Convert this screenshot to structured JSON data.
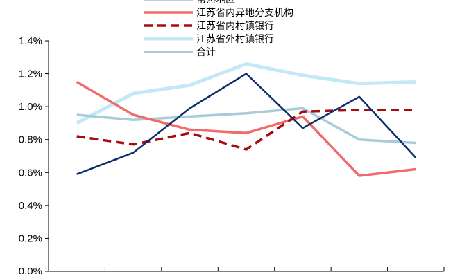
{
  "chart_data": {
    "type": "line",
    "title": "",
    "xlabel": "",
    "ylabel": "",
    "ylim": [
      0,
      1.4
    ],
    "yticks": [
      "0.0%",
      "0.2%",
      "0.4%",
      "0.6%",
      "0.8%",
      "1.0%",
      "1.2%",
      "1.4%"
    ],
    "y_unit": "%",
    "grid": false,
    "legend_position": "top-center",
    "x": [
      1,
      2,
      3,
      4,
      5,
      6,
      7
    ],
    "series": [
      {
        "name": "常熟地区",
        "color": "#0b2d6b",
        "style": "solid",
        "width": 2.5,
        "values": [
          0.59,
          0.72,
          0.99,
          1.2,
          0.87,
          1.06,
          0.69
        ]
      },
      {
        "name": "江苏省内异地分支机构",
        "color": "#f26b6b",
        "style": "solid",
        "width": 3.5,
        "values": [
          1.15,
          0.95,
          0.86,
          0.84,
          0.94,
          0.58,
          0.62
        ]
      },
      {
        "name": "江苏省内村镇银行",
        "color": "#a50d12",
        "style": "dashed",
        "width": 3.5,
        "values": [
          0.82,
          0.77,
          0.84,
          0.74,
          0.97,
          0.98,
          0.98
        ]
      },
      {
        "name": "江苏省外村镇银行",
        "color": "#c5e8f7",
        "style": "solid",
        "width": 5,
        "values": [
          0.9,
          1.08,
          1.13,
          1.26,
          1.19,
          1.14,
          1.15
        ]
      },
      {
        "name": "合计",
        "color": "#a9cbd9",
        "style": "solid",
        "width": 3.5,
        "values": [
          0.95,
          0.92,
          0.94,
          0.96,
          0.99,
          0.8,
          0.78
        ]
      }
    ]
  }
}
